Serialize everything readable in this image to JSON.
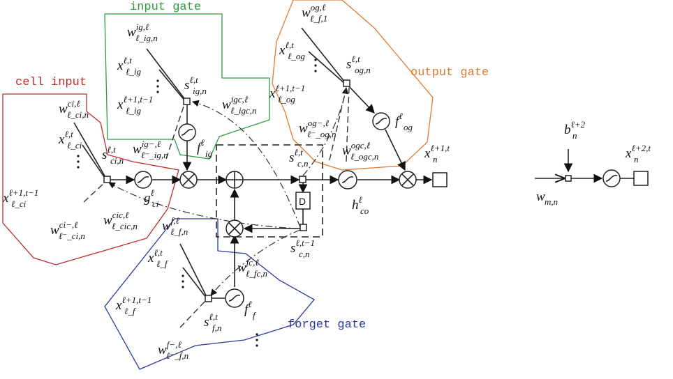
{
  "regions": {
    "input_gate": {
      "label": "input gate",
      "color": "#2e9b3e"
    },
    "cell_input": {
      "label": "cell input",
      "color": "#c0282b"
    },
    "output_gate": {
      "label": "output gate",
      "color": "#e07a2c"
    },
    "forget_gate": {
      "label": "forget gate",
      "color": "#2a3a9a"
    }
  },
  "labels": {
    "w_ig": {
      "base": "w",
      "sup": "ig,ℓ",
      "sub": "ℓ_ig,n"
    },
    "x_ig": {
      "base": "x",
      "sup": "ℓ,t",
      "sub": "ℓ_ig"
    },
    "s_ig": {
      "base": "s",
      "sup": "ℓ,t",
      "sub": "ig,n"
    },
    "w_igc": {
      "base": "w",
      "sup": "igc,ℓ",
      "sub": "ℓ_igc,n"
    },
    "x_ig_prev": {
      "base": "x",
      "sup": "ℓ+1,t−1",
      "sub": "ℓ_ig"
    },
    "w_ig_minus": {
      "base": "w",
      "sup": "ig−,ℓ",
      "sub": "ℓ⁻_ig,n"
    },
    "f_ig": {
      "base": "f",
      "sup": "ℓ",
      "sub": "ig"
    },
    "w_ci": {
      "base": "w",
      "sup": "ci,ℓ",
      "sub": "ℓ_ci,n"
    },
    "x_ci": {
      "base": "x",
      "sup": "ℓ,t",
      "sub": "ℓ_ci"
    },
    "s_ci": {
      "base": "s",
      "sup": "ℓ,t",
      "sub": "ci,n"
    },
    "g_ci": {
      "base": "g",
      "sup": "ℓ",
      "sub": "ci"
    },
    "x_ci_prev": {
      "base": "x",
      "sup": "ℓ+1,t−1",
      "sub": "ℓ_ci"
    },
    "w_ci_minus": {
      "base": "w",
      "sup": "ci−,ℓ",
      "sub": "ℓ⁻_ci,n"
    },
    "w_cic": {
      "base": "w",
      "sup": "cic,ℓ",
      "sub": "ℓ_cic,n"
    },
    "w_og": {
      "base": "w",
      "sup": "og,ℓ",
      "sub": "ℓ_f,1"
    },
    "x_og": {
      "base": "x",
      "sup": "ℓ,t",
      "sub": "ℓ_og"
    },
    "s_og": {
      "base": "s",
      "sup": "ℓ,t",
      "sub": "og,n"
    },
    "x_og_prev": {
      "base": "x",
      "sup": "ℓ+1,t−1",
      "sub": "ℓ_og"
    },
    "w_og_minus": {
      "base": "w",
      "sup": "og−,ℓ",
      "sub": "ℓ⁻_og,n"
    },
    "f_og": {
      "base": "f",
      "sup": "ℓ",
      "sub": "og"
    },
    "w_ogc": {
      "base": "w",
      "sup": "ogc,ℓ",
      "sub": "ℓ_ogc,n"
    },
    "s_c": {
      "base": "s",
      "sup": "ℓ,t",
      "sub": "c,n"
    },
    "s_c_prev": {
      "base": "s",
      "sup": "ℓ,t−1",
      "sub": "c,n"
    },
    "h_co": {
      "base": "h",
      "sup": "ℓ",
      "sub": "co"
    },
    "x_out": {
      "base": "x",
      "sup": "ℓ+1,t",
      "sub": "n"
    },
    "delay": {
      "base": "D",
      "sup": "",
      "sub": ""
    },
    "w_f": {
      "base": "w",
      "sup": "f,ℓ",
      "sub": "ℓ_f,n"
    },
    "x_f": {
      "base": "x",
      "sup": "ℓ,t",
      "sub": "ℓ_f"
    },
    "w_fc": {
      "base": "w",
      "sup": "fc,ℓ",
      "sub": "ℓ_fc,n"
    },
    "x_f_prev": {
      "base": "x",
      "sup": "ℓ+1,t−1",
      "sub": "ℓ_f"
    },
    "s_f": {
      "base": "s",
      "sup": "ℓ,t",
      "sub": "f,n"
    },
    "f_f": {
      "base": "f",
      "sup": "ℓ",
      "sub": "f"
    },
    "w_f_minus": {
      "base": "w",
      "sup": "f−,ℓ",
      "sub": "ℓ⁻_f,n"
    },
    "b_next": {
      "base": "b",
      "sup": "ℓ+2",
      "sub": "n"
    },
    "w_mn": {
      "base": "w",
      "sup": "",
      "sub": "m,n"
    },
    "x_next": {
      "base": "x",
      "sup": "ℓ+2,t",
      "sub": "n"
    }
  }
}
